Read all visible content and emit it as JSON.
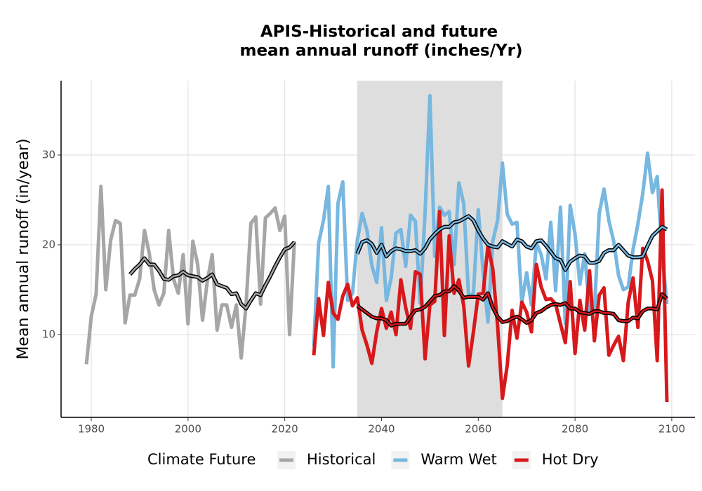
{
  "chart_data": {
    "type": "line",
    "title": [
      "APIS-Historical and future",
      "mean annual runoff (inches/Yr)"
    ],
    "ylabel": "Mean annual runoff (in/year)",
    "legend_title": "Climate Future",
    "xlim": [
      1973.76,
      2104.8
    ],
    "ylim": [
      0.78,
      38.28
    ],
    "xticks": [
      1980,
      2000,
      2020,
      2040,
      2060,
      2080,
      2100
    ],
    "yticks": [
      10,
      20,
      30
    ],
    "grid": true,
    "shade": [
      2035,
      2065
    ],
    "shade_color": "#dcdcdc",
    "series": [
      {
        "name": "Historical",
        "color": "#a6a6a6",
        "x": [
          1979,
          1980,
          1981,
          1982,
          1983,
          1984,
          1985,
          1986,
          1987,
          1988,
          1989,
          1990,
          1991,
          1992,
          1993,
          1994,
          1995,
          1996,
          1997,
          1998,
          1999,
          2000,
          2001,
          2002,
          2003,
          2004,
          2005,
          2006,
          2007,
          2008,
          2009,
          2010,
          2011,
          2012,
          2013,
          2014,
          2015,
          2016,
          2017,
          2018,
          2019,
          2020,
          2021,
          2022
        ],
        "values": [
          6.7,
          12,
          14.5,
          26.5,
          15,
          20.5,
          22.7,
          22.4,
          11.3,
          14.4,
          14.4,
          16.2,
          21.6,
          19,
          15,
          13.3,
          14.6,
          21.6,
          16.2,
          14.6,
          18.9,
          11.2,
          20.4,
          17.8,
          11.6,
          16,
          18.9,
          10.5,
          13.3,
          13.3,
          10.8,
          13.3,
          7.4,
          13.3,
          22.4,
          23.1,
          13.4,
          23,
          23.5,
          24.1,
          21.6,
          23.2,
          10,
          20.4
        ],
        "smooth_x": [
          1988,
          1989,
          1990,
          1991,
          1992,
          1993,
          1994,
          1995,
          1996,
          1997,
          1998,
          1999,
          2000,
          2001,
          2002,
          2003,
          2004,
          2005,
          2006,
          2007,
          2008,
          2009,
          2010,
          2011,
          2012,
          2013,
          2014,
          2015,
          2016,
          2017,
          2018,
          2019,
          2020,
          2021,
          2022
        ],
        "smooth": [
          16.7,
          17.3,
          17.8,
          18.5,
          17.8,
          17.8,
          17.1,
          16.2,
          16.1,
          16.5,
          16.6,
          17.0,
          16.6,
          16.5,
          16.4,
          16.0,
          16.3,
          16.7,
          15.6,
          15.4,
          15.2,
          14.5,
          14.6,
          13.4,
          12.9,
          13.8,
          14.6,
          14.4,
          15.5,
          16.5,
          17.6,
          18.6,
          19.5,
          19.7,
          20.3
        ]
      },
      {
        "name": "Warm Wet",
        "color": "#77b7e0",
        "x": [
          2026,
          2027,
          2028,
          2029,
          2030,
          2031,
          2032,
          2033,
          2034,
          2035,
          2036,
          2037,
          2038,
          2039,
          2040,
          2041,
          2042,
          2043,
          2044,
          2045,
          2046,
          2047,
          2048,
          2049,
          2050,
          2051,
          2052,
          2053,
          2054,
          2055,
          2056,
          2057,
          2058,
          2059,
          2060,
          2061,
          2062,
          2063,
          2064,
          2065,
          2066,
          2067,
          2068,
          2069,
          2070,
          2071,
          2072,
          2073,
          2074,
          2075,
          2076,
          2077,
          2078,
          2079,
          2080,
          2081,
          2082,
          2083,
          2084,
          2085,
          2086,
          2087,
          2088,
          2089,
          2090,
          2091,
          2092,
          2093,
          2094,
          2095,
          2096,
          2097,
          2098,
          2099
        ],
        "values": [
          8.7,
          20.2,
          22.7,
          26.5,
          6.4,
          24.6,
          27,
          13.8,
          14.6,
          20.5,
          23.5,
          21.6,
          17.7,
          15.8,
          21.9,
          13.8,
          16.3,
          21.3,
          21.7,
          17.6,
          23.3,
          22.6,
          13.5,
          23.5,
          36.6,
          18.7,
          24.2,
          23.3,
          23.7,
          17.8,
          26.9,
          24.6,
          14.3,
          14.6,
          23.9,
          17,
          11.4,
          20.4,
          22.7,
          29.1,
          23.4,
          22.3,
          22.5,
          13.5,
          16.9,
          13.3,
          20.2,
          18.9,
          16.2,
          22.5,
          14.9,
          24.2,
          11.2,
          24.4,
          21.2,
          15.6,
          19,
          12.7,
          12.5,
          23.5,
          26.2,
          22.7,
          20.4,
          16.6,
          15,
          15.3,
          19.5,
          22.3,
          25.7,
          30.2,
          25.8,
          27.6,
          19.1,
          13.4
        ],
        "smooth_x": [
          2035,
          2036,
          2037,
          2038,
          2039,
          2040,
          2041,
          2042,
          2043,
          2044,
          2045,
          2046,
          2047,
          2048,
          2049,
          2050,
          2051,
          2052,
          2053,
          2054,
          2055,
          2056,
          2057,
          2058,
          2059,
          2060,
          2061,
          2062,
          2063,
          2064,
          2065,
          2066,
          2067,
          2068,
          2069,
          2070,
          2071,
          2072,
          2073,
          2074,
          2075,
          2076,
          2077,
          2078,
          2079,
          2080,
          2081,
          2082,
          2083,
          2084,
          2085,
          2086,
          2087,
          2088,
          2089,
          2090,
          2091,
          2092,
          2093,
          2094,
          2095,
          2096,
          2097,
          2098,
          2099
        ],
        "smooth": [
          19,
          20.3,
          20.5,
          20.1,
          19.1,
          20,
          18.7,
          19.3,
          19.6,
          19.5,
          19.3,
          19.3,
          19.4,
          19.0,
          19.6,
          20.6,
          21.2,
          21.7,
          22.0,
          22.0,
          22.5,
          22.6,
          22.9,
          23.2,
          22.7,
          21.6,
          20.7,
          20.0,
          19.8,
          19.7,
          20.4,
          20.1,
          19.8,
          20.6,
          20.4,
          19.8,
          19.6,
          20.4,
          20.5,
          19.9,
          19.2,
          18.5,
          18.3,
          17.2,
          18.1,
          18.5,
          18.8,
          18.7,
          18.0,
          18.0,
          18.2,
          19.1,
          19.4,
          19.4,
          20.0,
          19.4,
          18.8,
          18.6,
          18.6,
          18.7,
          19.9,
          21.0,
          21.5,
          22.0,
          21.7
        ]
      },
      {
        "name": "Hot Dry",
        "color": "#d7191c",
        "x": [
          2026,
          2027,
          2028,
          2029,
          2030,
          2031,
          2032,
          2033,
          2034,
          2035,
          2036,
          2037,
          2038,
          2039,
          2040,
          2041,
          2042,
          2043,
          2044,
          2045,
          2046,
          2047,
          2048,
          2049,
          2050,
          2051,
          2052,
          2053,
          2054,
          2055,
          2056,
          2057,
          2058,
          2059,
          2060,
          2061,
          2062,
          2063,
          2064,
          2065,
          2066,
          2067,
          2068,
          2069,
          2070,
          2071,
          2072,
          2073,
          2074,
          2075,
          2076,
          2077,
          2078,
          2079,
          2080,
          2081,
          2082,
          2083,
          2084,
          2085,
          2086,
          2087,
          2088,
          2089,
          2090,
          2091,
          2092,
          2093,
          2094,
          2095,
          2096,
          2097,
          2098,
          2099
        ],
        "values": [
          7.7,
          14,
          9.9,
          15.8,
          12.4,
          11.7,
          14.3,
          15.6,
          13.2,
          14.1,
          10.5,
          8.8,
          6.8,
          10.3,
          12.9,
          10.7,
          12.5,
          10,
          16.1,
          13,
          10.7,
          17,
          16.7,
          7.3,
          13.3,
          13.7,
          23.7,
          9.9,
          21,
          14.6,
          16.1,
          13.2,
          6.5,
          10.3,
          14.5,
          14.6,
          19.9,
          17.3,
          11,
          2.9,
          6.6,
          12.7,
          9.6,
          13.6,
          12.5,
          10.3,
          17.8,
          15.3,
          13.9,
          14,
          13.4,
          11.2,
          9.1,
          15.9,
          7.9,
          13.8,
          10.5,
          17.1,
          9.3,
          14.4,
          15.2,
          7.7,
          8.8,
          9.8,
          7.1,
          13.6,
          16.3,
          10.8,
          19.6,
          18.2,
          16,
          7.1,
          26.1,
          2.5
        ],
        "smooth_x": [
          2035,
          2036,
          2037,
          2038,
          2039,
          2040,
          2041,
          2042,
          2043,
          2044,
          2045,
          2046,
          2047,
          2048,
          2049,
          2050,
          2051,
          2052,
          2053,
          2054,
          2055,
          2056,
          2057,
          2058,
          2059,
          2060,
          2061,
          2062,
          2063,
          2064,
          2065,
          2066,
          2067,
          2068,
          2069,
          2070,
          2071,
          2072,
          2073,
          2074,
          2075,
          2076,
          2077,
          2078,
          2079,
          2080,
          2081,
          2082,
          2083,
          2084,
          2085,
          2086,
          2087,
          2088,
          2089,
          2090,
          2091,
          2092,
          2093,
          2094,
          2095,
          2096,
          2097,
          2098,
          2099
        ],
        "smooth": [
          13.2,
          12.8,
          12.4,
          12.0,
          11.8,
          11.8,
          11.6,
          11.0,
          11.2,
          11.2,
          11.2,
          12.0,
          12.7,
          12.8,
          13.1,
          13.7,
          14.3,
          14.4,
          14.8,
          14.8,
          15.4,
          14.9,
          14.1,
          14.2,
          14.2,
          14.2,
          13.9,
          14.6,
          13.0,
          12.0,
          11.4,
          11.5,
          11.8,
          12.0,
          11.7,
          11.3,
          11.6,
          12.4,
          12.6,
          13.0,
          13.3,
          13.4,
          13.3,
          13.5,
          12.9,
          12.9,
          12.5,
          12.4,
          12.3,
          12.6,
          12.6,
          12.4,
          12.4,
          12.3,
          11.6,
          11.5,
          11.5,
          11.9,
          11.8,
          12.6,
          12.9,
          12.9,
          12.8,
          14.5,
          14.0
        ]
      }
    ]
  }
}
